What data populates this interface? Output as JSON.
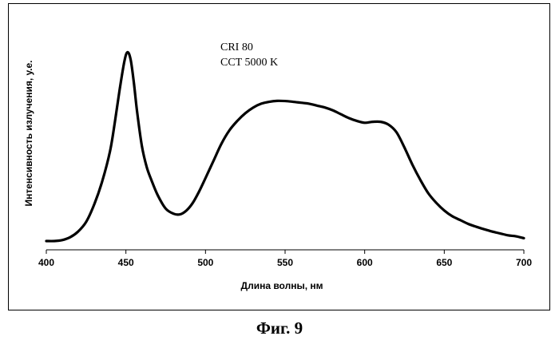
{
  "chart_data": {
    "type": "line",
    "title": "",
    "xlabel": "Длина волны, нм",
    "ylabel": "Интенсивность излучения, у.е.",
    "xlim": [
      400,
      700
    ],
    "ylim": [
      0,
      1.05
    ],
    "xticks": [
      400,
      450,
      500,
      550,
      600,
      650,
      700
    ],
    "xtick_labels": [
      "400",
      "450",
      "500",
      "550",
      "600",
      "650",
      "700"
    ],
    "grid": false,
    "legend": "none",
    "annotations": [
      "CRI 80",
      "CCT 5000 K"
    ],
    "series": [
      {
        "x": [
          400,
          405,
          410,
          415,
          420,
          425,
          430,
          435,
          440,
          443,
          446,
          449,
          451,
          453,
          455,
          457,
          460,
          463,
          466,
          470,
          475,
          480,
          484,
          488,
          492,
          496,
          500,
          505,
          510,
          515,
          520,
          525,
          530,
          535,
          540,
          545,
          550,
          555,
          560,
          565,
          570,
          575,
          580,
          585,
          590,
          595,
          600,
          605,
          610,
          615,
          620,
          625,
          630,
          635,
          640,
          645,
          650,
          655,
          660,
          665,
          670,
          675,
          680,
          685,
          690,
          695,
          700
        ],
        "y": [
          0.0,
          0.0,
          0.005,
          0.02,
          0.05,
          0.1,
          0.19,
          0.31,
          0.47,
          0.62,
          0.79,
          0.94,
          0.99,
          0.95,
          0.83,
          0.68,
          0.5,
          0.39,
          0.32,
          0.24,
          0.17,
          0.143,
          0.14,
          0.16,
          0.2,
          0.26,
          0.33,
          0.42,
          0.51,
          0.58,
          0.63,
          0.67,
          0.7,
          0.72,
          0.73,
          0.735,
          0.734,
          0.73,
          0.725,
          0.72,
          0.71,
          0.7,
          0.685,
          0.665,
          0.645,
          0.63,
          0.62,
          0.625,
          0.625,
          0.61,
          0.57,
          0.49,
          0.4,
          0.32,
          0.25,
          0.2,
          0.16,
          0.13,
          0.11,
          0.09,
          0.075,
          0.062,
          0.05,
          0.04,
          0.03,
          0.025,
          0.015
        ]
      }
    ]
  },
  "figure": {
    "caption": "Фиг. 9"
  },
  "colors": {
    "line": "#000000",
    "axis": "#000000",
    "background": "#ffffff"
  }
}
